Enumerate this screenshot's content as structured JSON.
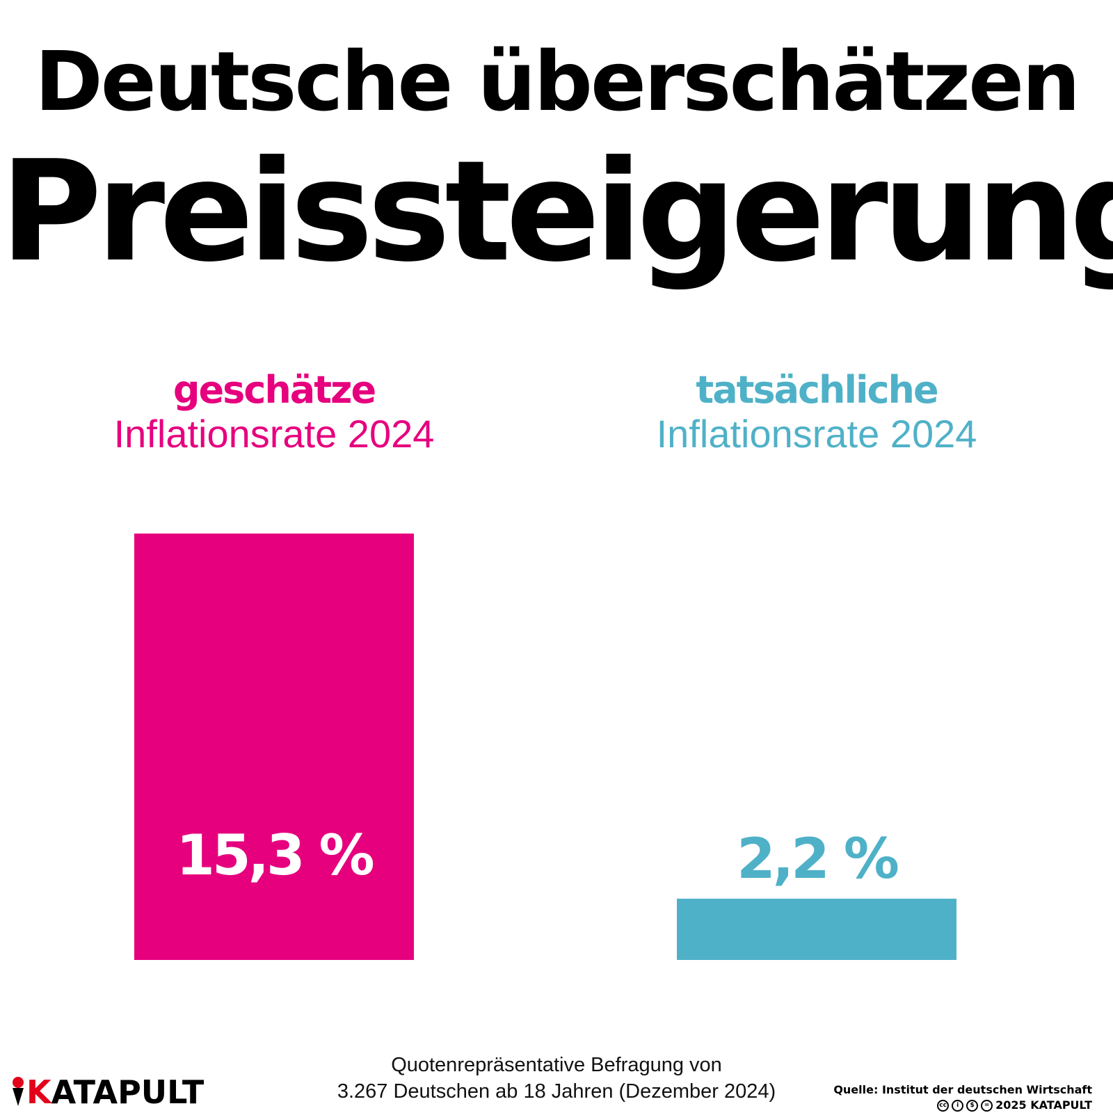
{
  "title": {
    "line1": "Deutsche überschätzen",
    "line2": "Preissteigerung"
  },
  "chart_data": {
    "type": "bar",
    "categories": [
      {
        "emphasis": "geschätze",
        "label": "Inflationsrate 2024"
      },
      {
        "emphasis": "tatsächliche",
        "label": "Inflationsrate 2024"
      }
    ],
    "values": [
      15.3,
      2.2
    ],
    "value_labels": [
      "15,3 %",
      "2,2 %"
    ],
    "colors": [
      "#e6007e",
      "#4fb1c8"
    ],
    "unit": "%",
    "ylim": [
      0,
      15.3
    ]
  },
  "footer": {
    "note_line1": "Quotenrepräsentative Befragung von",
    "note_line2": "3.267 Deutschen ab 18 Jahren (Dezember 2024)",
    "source": "Quelle: Institut der deutschen Wirtschaft",
    "copyright": "2025 KATAPULT",
    "license_icons": [
      "cc-icon",
      "by-icon",
      "nc-icon",
      "nd-icon"
    ]
  },
  "brand": {
    "logo_k": "K",
    "logo_rest": "ATAPULT",
    "logo_icon": "catapult-icon",
    "accent": "#e3001b"
  }
}
